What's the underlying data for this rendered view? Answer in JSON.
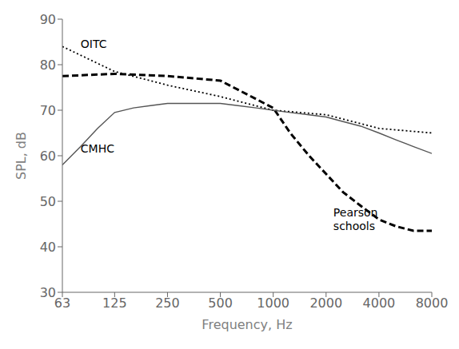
{
  "chart_data": {
    "type": "line",
    "title": "",
    "xlabel": "Frequency, Hz",
    "ylabel": "SPL, dB",
    "log": "x",
    "grid": false,
    "xlim": [
      63,
      8000
    ],
    "ylim": [
      30,
      90
    ],
    "xticks": [
      63,
      125,
      250,
      500,
      1000,
      2000,
      4000,
      8000
    ],
    "yticks": [
      30,
      40,
      50,
      60,
      70,
      80,
      90
    ],
    "series": [
      {
        "color": "#000000",
        "line_style": "dotted",
        "x": [
          63,
          125,
          250,
          500,
          1000,
          2000,
          4000,
          8000
        ],
        "values": [
          84.0,
          78.5,
          75.5,
          73.0,
          70.0,
          69.0,
          66.0,
          65.0
        ]
      },
      {
        "color": "#000000",
        "line_style": "dashed",
        "x": [
          63,
          125,
          250,
          500,
          1000,
          1250,
          1600,
          2000,
          2500,
          3150,
          4000,
          5000,
          6300,
          8000
        ],
        "values": [
          77.5,
          78.0,
          77.5,
          76.5,
          70.5,
          65.0,
          60.0,
          56.0,
          52.0,
          49.0,
          46.0,
          44.5,
          43.5,
          43.5
        ]
      },
      {
        "color": "#555555",
        "line_style": "solid",
        "x": [
          63,
          80,
          100,
          125,
          160,
          200,
          250,
          315,
          400,
          500,
          630,
          800,
          1000,
          1250,
          1600,
          2000,
          2500,
          3150,
          4000,
          5000,
          6300,
          8000
        ],
        "values": [
          58.0,
          62.0,
          66.0,
          69.5,
          70.5,
          71.0,
          71.5,
          71.5,
          71.5,
          71.5,
          71.0,
          70.5,
          70.0,
          69.5,
          69.0,
          68.5,
          67.5,
          66.5,
          65.0,
          63.5,
          62.0,
          60.5
        ]
      }
    ],
    "annotations": [
      {
        "text": "OITC",
        "x": 80,
        "y": 85.5
      },
      {
        "text": "CMHC",
        "x": 80,
        "y": 62.5
      },
      {
        "text": "Pearson\nschools",
        "x": 2200,
        "y": 48.5
      }
    ]
  }
}
